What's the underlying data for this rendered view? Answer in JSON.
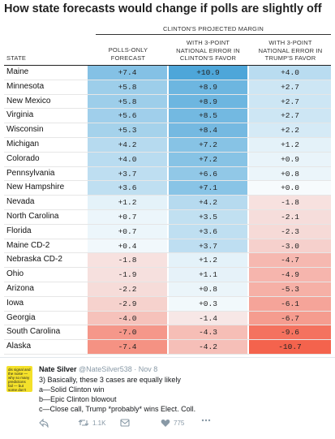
{
  "chart_data": {
    "type": "table",
    "title": "How state forecasts would change if polls are slightly off",
    "group_header": "CLINTON'S PROJECTED MARGIN",
    "columns": [
      "STATE",
      "POLLS-ONLY FORECAST",
      "WITH 3-POINT NATIONAL ERROR IN CLINTON'S FAVOR",
      "WITH 3-POINT NATIONAL ERROR IN TRUMP'S FAVOR"
    ],
    "column_lines": [
      [
        "POLLS-ONLY",
        "FORECAST"
      ],
      [
        "WITH 3-POINT",
        "NATIONAL ERROR IN",
        "CLINTON'S FAVOR"
      ],
      [
        "WITH 3-POINT",
        "NATIONAL ERROR IN",
        "TRUMP'S FAVOR"
      ]
    ],
    "rows": [
      {
        "state": "Maine",
        "polls_only": "+7.4",
        "clinton_favor": "+10.9",
        "trump_favor": "+4.0"
      },
      {
        "state": "Minnesota",
        "polls_only": "+5.8",
        "clinton_favor": "+8.9",
        "trump_favor": "+2.7"
      },
      {
        "state": "New Mexico",
        "polls_only": "+5.8",
        "clinton_favor": "+8.9",
        "trump_favor": "+2.7"
      },
      {
        "state": "Virginia",
        "polls_only": "+5.6",
        "clinton_favor": "+8.5",
        "trump_favor": "+2.7"
      },
      {
        "state": "Wisconsin",
        "polls_only": "+5.3",
        "clinton_favor": "+8.4",
        "trump_favor": "+2.2"
      },
      {
        "state": "Michigan",
        "polls_only": "+4.2",
        "clinton_favor": "+7.2",
        "trump_favor": "+1.2"
      },
      {
        "state": "Colorado",
        "polls_only": "+4.0",
        "clinton_favor": "+7.2",
        "trump_favor": "+0.9"
      },
      {
        "state": "Pennsylvania",
        "polls_only": "+3.7",
        "clinton_favor": "+6.6",
        "trump_favor": "+0.8"
      },
      {
        "state": "New Hampshire",
        "polls_only": "+3.6",
        "clinton_favor": "+7.1",
        "trump_favor": "+0.0"
      },
      {
        "state": "Nevada",
        "polls_only": "+1.2",
        "clinton_favor": "+4.2",
        "trump_favor": "-1.8"
      },
      {
        "state": "North Carolina",
        "polls_only": "+0.7",
        "clinton_favor": "+3.5",
        "trump_favor": "-2.1"
      },
      {
        "state": "Florida",
        "polls_only": "+0.7",
        "clinton_favor": "+3.6",
        "trump_favor": "-2.3"
      },
      {
        "state": "Maine CD-2",
        "polls_only": "+0.4",
        "clinton_favor": "+3.7",
        "trump_favor": "-3.0"
      },
      {
        "state": "Nebraska CD-2",
        "polls_only": "-1.8",
        "clinton_favor": "+1.2",
        "trump_favor": "-4.7"
      },
      {
        "state": "Ohio",
        "polls_only": "-1.9",
        "clinton_favor": "+1.1",
        "trump_favor": "-4.9"
      },
      {
        "state": "Arizona",
        "polls_only": "-2.2",
        "clinton_favor": "+0.8",
        "trump_favor": "-5.3"
      },
      {
        "state": "Iowa",
        "polls_only": "-2.9",
        "clinton_favor": "+0.3",
        "trump_favor": "-6.1"
      },
      {
        "state": "Georgia",
        "polls_only": "-4.0",
        "clinton_favor": "-1.4",
        "trump_favor": "-6.7"
      },
      {
        "state": "South Carolina",
        "polls_only": "-7.0",
        "clinton_favor": "-4.3",
        "trump_favor": "-9.6"
      },
      {
        "state": "Alaska",
        "polls_only": "-7.4",
        "clinton_favor": "-4.2",
        "trump_favor": "-10.7"
      }
    ],
    "colors": {
      "clinton_max": "#4ea6d9",
      "trump_max": "#f4604a",
      "neutral": "#f7fbfd"
    }
  },
  "tweet": {
    "avatar_text": "dis signal and the noise — why so many predictions fail — but some don't",
    "name": "Nate Silver",
    "handle": "@NateSilver538",
    "time": "· Nov 8",
    "lines": [
      "3) Basically, these 3 cases are equally likely",
      "a—Solid Clinton win",
      "b—Epic Clinton blowout",
      "c—Close call, Trump *probably* wins Elect. Coll."
    ],
    "reply_icon": "reply-icon",
    "retweet_icon": "retweet-icon",
    "retweet_count": "1.1K",
    "dm_icon": "dm-icon",
    "like_icon": "like-icon",
    "like_count": "775",
    "more_icon": "more-icon"
  }
}
